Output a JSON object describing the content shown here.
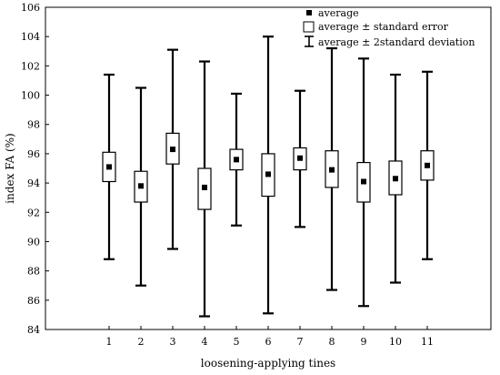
{
  "chart_data": {
    "type": "box",
    "categories": [
      "1",
      "2",
      "3",
      "4",
      "5",
      "6",
      "7",
      "8",
      "9",
      "10",
      "11"
    ],
    "xlabel": "loosening-applying tines",
    "ylabel": "index FA (%)",
    "ylim": [
      84,
      106
    ],
    "yticks": [
      84,
      86,
      88,
      90,
      92,
      94,
      96,
      98,
      100,
      102,
      104,
      106
    ],
    "grid": false,
    "legend_position": "top-right",
    "legend": {
      "mean": "average",
      "se_box": "average ± standard error",
      "sd_whisker": "average ± 2standard deviation"
    },
    "series": [
      {
        "category": "1",
        "mean": 95.1,
        "se_low": 94.1,
        "se_high": 96.1,
        "sd2_low": 88.8,
        "sd2_high": 101.4
      },
      {
        "category": "2",
        "mean": 93.8,
        "se_low": 92.7,
        "se_high": 94.8,
        "sd2_low": 87.0,
        "sd2_high": 100.5
      },
      {
        "category": "3",
        "mean": 96.3,
        "se_low": 95.3,
        "se_high": 97.4,
        "sd2_low": 89.5,
        "sd2_high": 103.1
      },
      {
        "category": "4",
        "mean": 93.7,
        "se_low": 92.2,
        "se_high": 95.0,
        "sd2_low": 84.9,
        "sd2_high": 102.3
      },
      {
        "category": "5",
        "mean": 95.6,
        "se_low": 94.9,
        "se_high": 96.3,
        "sd2_low": 91.1,
        "sd2_high": 100.1
      },
      {
        "category": "6",
        "mean": 94.6,
        "se_low": 93.1,
        "se_high": 96.0,
        "sd2_low": 85.1,
        "sd2_high": 104.0
      },
      {
        "category": "7",
        "mean": 95.7,
        "se_low": 94.9,
        "se_high": 96.4,
        "sd2_low": 91.0,
        "sd2_high": 100.3
      },
      {
        "category": "8",
        "mean": 94.9,
        "se_low": 93.7,
        "se_high": 96.2,
        "sd2_low": 86.7,
        "sd2_high": 103.2
      },
      {
        "category": "9",
        "mean": 94.1,
        "se_low": 92.7,
        "se_high": 95.4,
        "sd2_low": 85.6,
        "sd2_high": 102.5
      },
      {
        "category": "10",
        "mean": 94.3,
        "se_low": 93.2,
        "se_high": 95.5,
        "sd2_low": 87.2,
        "sd2_high": 101.4
      },
      {
        "category": "11",
        "mean": 95.2,
        "se_low": 94.2,
        "se_high": 96.2,
        "sd2_low": 88.8,
        "sd2_high": 101.6
      }
    ]
  }
}
